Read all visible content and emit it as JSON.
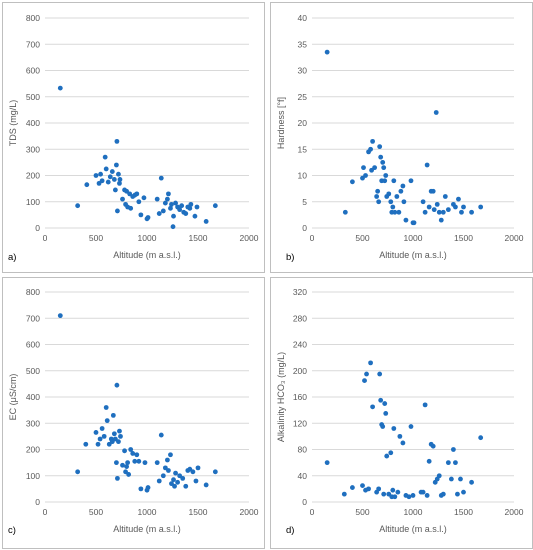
{
  "chart_data": [
    {
      "type": "scatter",
      "panel_label": "a)",
      "xlabel": "Altitude (m a.s.l.)",
      "ylabel": "TDS (mg/L)",
      "xlim": [
        0,
        2000
      ],
      "ylim": [
        0,
        800
      ],
      "x_ticks": [
        "0",
        "500",
        "1000",
        "1500",
        "2000"
      ],
      "y_ticks": [
        "0",
        "100",
        "200",
        "300",
        "400",
        "500",
        "600",
        "700",
        "800"
      ],
      "grid": "horizontal",
      "color": "#1f6fbf",
      "points": [
        [
          150,
          533
        ],
        [
          320,
          85
        ],
        [
          410,
          165
        ],
        [
          500,
          200
        ],
        [
          530,
          170
        ],
        [
          545,
          205
        ],
        [
          560,
          180
        ],
        [
          590,
          270
        ],
        [
          600,
          225
        ],
        [
          620,
          175
        ],
        [
          640,
          195
        ],
        [
          660,
          215
        ],
        [
          680,
          185
        ],
        [
          690,
          145
        ],
        [
          700,
          240
        ],
        [
          705,
          330
        ],
        [
          710,
          65
        ],
        [
          720,
          205
        ],
        [
          730,
          170
        ],
        [
          735,
          185
        ],
        [
          760,
          110
        ],
        [
          780,
          145
        ],
        [
          790,
          90
        ],
        [
          800,
          140
        ],
        [
          810,
          80
        ],
        [
          830,
          130
        ],
        [
          840,
          75
        ],
        [
          860,
          120
        ],
        [
          880,
          125
        ],
        [
          900,
          130
        ],
        [
          920,
          100
        ],
        [
          940,
          50
        ],
        [
          970,
          115
        ],
        [
          1000,
          35
        ],
        [
          1010,
          40
        ],
        [
          1100,
          110
        ],
        [
          1120,
          55
        ],
        [
          1140,
          190
        ],
        [
          1160,
          65
        ],
        [
          1180,
          95
        ],
        [
          1200,
          110
        ],
        [
          1210,
          130
        ],
        [
          1230,
          75
        ],
        [
          1240,
          90
        ],
        [
          1255,
          5
        ],
        [
          1260,
          45
        ],
        [
          1280,
          95
        ],
        [
          1300,
          80
        ],
        [
          1320,
          70
        ],
        [
          1340,
          85
        ],
        [
          1360,
          60
        ],
        [
          1380,
          55
        ],
        [
          1400,
          80
        ],
        [
          1420,
          75
        ],
        [
          1430,
          90
        ],
        [
          1470,
          45
        ],
        [
          1490,
          80
        ],
        [
          1580,
          25
        ],
        [
          1670,
          85
        ]
      ]
    },
    {
      "type": "scatter",
      "panel_label": "b)",
      "xlabel": "Altitude (m a.s.l.)",
      "ylabel": "Hardness [°f]",
      "xlim": [
        0,
        2000
      ],
      "ylim": [
        0,
        40
      ],
      "x_ticks": [
        "0",
        "500",
        "1000",
        "1500",
        "2000"
      ],
      "y_ticks": [
        "0",
        "5",
        "10",
        "15",
        "20",
        "25",
        "30",
        "35",
        "40"
      ],
      "grid": "horizontal",
      "color": "#1f6fbf",
      "points": [
        [
          150,
          33.5
        ],
        [
          330,
          3
        ],
        [
          400,
          8.8
        ],
        [
          500,
          9.5
        ],
        [
          510,
          11.5
        ],
        [
          530,
          10
        ],
        [
          560,
          14.5
        ],
        [
          580,
          15
        ],
        [
          590,
          11
        ],
        [
          600,
          16.5
        ],
        [
          620,
          11.5
        ],
        [
          640,
          6
        ],
        [
          650,
          7
        ],
        [
          660,
          5
        ],
        [
          670,
          15.5
        ],
        [
          680,
          13.5
        ],
        [
          690,
          9
        ],
        [
          700,
          12.5
        ],
        [
          710,
          11.5
        ],
        [
          720,
          9
        ],
        [
          730,
          10
        ],
        [
          740,
          6
        ],
        [
          760,
          6.5
        ],
        [
          780,
          5
        ],
        [
          790,
          3
        ],
        [
          800,
          4
        ],
        [
          810,
          9
        ],
        [
          820,
          3
        ],
        [
          840,
          6
        ],
        [
          860,
          3
        ],
        [
          880,
          7
        ],
        [
          900,
          8
        ],
        [
          910,
          5
        ],
        [
          930,
          1.5
        ],
        [
          980,
          9
        ],
        [
          1000,
          1
        ],
        [
          1010,
          1
        ],
        [
          1100,
          5
        ],
        [
          1120,
          3
        ],
        [
          1140,
          12
        ],
        [
          1160,
          4
        ],
        [
          1180,
          7
        ],
        [
          1200,
          7
        ],
        [
          1210,
          3.5
        ],
        [
          1230,
          22
        ],
        [
          1240,
          4.5
        ],
        [
          1260,
          3
        ],
        [
          1280,
          1.5
        ],
        [
          1300,
          3
        ],
        [
          1320,
          6
        ],
        [
          1350,
          3.5
        ],
        [
          1400,
          4.5
        ],
        [
          1420,
          4
        ],
        [
          1450,
          5.5
        ],
        [
          1480,
          3
        ],
        [
          1500,
          4
        ],
        [
          1580,
          3
        ],
        [
          1670,
          4
        ]
      ]
    },
    {
      "type": "scatter",
      "panel_label": "c)",
      "xlabel": "Altitude (m a.s.l.)",
      "ylabel": "EC (μS/cm)",
      "xlim": [
        0,
        2000
      ],
      "ylim": [
        0,
        800
      ],
      "x_ticks": [
        "0",
        "500",
        "1000",
        "1500",
        "2000"
      ],
      "y_ticks": [
        "0",
        "100",
        "200",
        "300",
        "400",
        "500",
        "600",
        "700",
        "800"
      ],
      "grid": "horizontal",
      "color": "#1f6fbf",
      "points": [
        [
          150,
          710
        ],
        [
          320,
          115
        ],
        [
          400,
          220
        ],
        [
          500,
          265
        ],
        [
          520,
          220
        ],
        [
          540,
          240
        ],
        [
          560,
          280
        ],
        [
          580,
          250
        ],
        [
          600,
          360
        ],
        [
          610,
          310
        ],
        [
          630,
          220
        ],
        [
          650,
          240
        ],
        [
          660,
          230
        ],
        [
          670,
          330
        ],
        [
          680,
          260
        ],
        [
          690,
          240
        ],
        [
          700,
          150
        ],
        [
          705,
          445
        ],
        [
          710,
          90
        ],
        [
          720,
          230
        ],
        [
          730,
          270
        ],
        [
          740,
          250
        ],
        [
          760,
          140
        ],
        [
          780,
          195
        ],
        [
          790,
          115
        ],
        [
          800,
          135
        ],
        [
          810,
          150
        ],
        [
          820,
          105
        ],
        [
          840,
          200
        ],
        [
          860,
          185
        ],
        [
          880,
          155
        ],
        [
          900,
          180
        ],
        [
          920,
          155
        ],
        [
          940,
          50
        ],
        [
          980,
          150
        ],
        [
          1000,
          45
        ],
        [
          1010,
          55
        ],
        [
          1100,
          150
        ],
        [
          1120,
          80
        ],
        [
          1140,
          255
        ],
        [
          1160,
          100
        ],
        [
          1180,
          130
        ],
        [
          1200,
          160
        ],
        [
          1210,
          120
        ],
        [
          1230,
          180
        ],
        [
          1240,
          70
        ],
        [
          1260,
          85
        ],
        [
          1270,
          60
        ],
        [
          1280,
          110
        ],
        [
          1300,
          75
        ],
        [
          1320,
          100
        ],
        [
          1350,
          90
        ],
        [
          1380,
          60
        ],
        [
          1400,
          120
        ],
        [
          1420,
          125
        ],
        [
          1450,
          115
        ],
        [
          1480,
          80
        ],
        [
          1500,
          130
        ],
        [
          1580,
          65
        ],
        [
          1670,
          115
        ]
      ]
    },
    {
      "type": "scatter",
      "panel_label": "d)",
      "xlabel": "Altitude (m a.s.l.)",
      "ylabel": "Alkalinity HCO₃ (mg/L)",
      "xlim": [
        0,
        2000
      ],
      "ylim": [
        0,
        320
      ],
      "x_ticks": [
        "0",
        "500",
        "1000",
        "1500",
        "2000"
      ],
      "y_ticks": [
        "0",
        "40",
        "80",
        "120",
        "160",
        "200",
        "240",
        "280",
        "320"
      ],
      "grid": "horizontal",
      "color": "#1f6fbf",
      "points": [
        [
          150,
          60
        ],
        [
          320,
          12
        ],
        [
          400,
          22
        ],
        [
          500,
          25
        ],
        [
          520,
          185
        ],
        [
          530,
          18
        ],
        [
          540,
          195
        ],
        [
          560,
          20
        ],
        [
          580,
          212
        ],
        [
          600,
          145
        ],
        [
          640,
          15
        ],
        [
          660,
          20
        ],
        [
          670,
          195
        ],
        [
          680,
          155
        ],
        [
          690,
          118
        ],
        [
          700,
          115
        ],
        [
          710,
          12
        ],
        [
          720,
          150
        ],
        [
          730,
          135
        ],
        [
          740,
          70
        ],
        [
          760,
          12
        ],
        [
          780,
          75
        ],
        [
          790,
          8
        ],
        [
          800,
          18
        ],
        [
          810,
          112
        ],
        [
          820,
          8
        ],
        [
          850,
          15
        ],
        [
          870,
          100
        ],
        [
          900,
          90
        ],
        [
          930,
          10
        ],
        [
          960,
          8
        ],
        [
          980,
          115
        ],
        [
          1000,
          10
        ],
        [
          1080,
          15
        ],
        [
          1100,
          15
        ],
        [
          1120,
          148
        ],
        [
          1140,
          10
        ],
        [
          1160,
          62
        ],
        [
          1180,
          88
        ],
        [
          1200,
          85
        ],
        [
          1220,
          30
        ],
        [
          1240,
          35
        ],
        [
          1260,
          40
        ],
        [
          1280,
          10
        ],
        [
          1300,
          12
        ],
        [
          1350,
          60
        ],
        [
          1380,
          35
        ],
        [
          1400,
          80
        ],
        [
          1420,
          60
        ],
        [
          1440,
          12
        ],
        [
          1470,
          35
        ],
        [
          1500,
          15
        ],
        [
          1580,
          30
        ],
        [
          1670,
          98
        ]
      ]
    }
  ]
}
